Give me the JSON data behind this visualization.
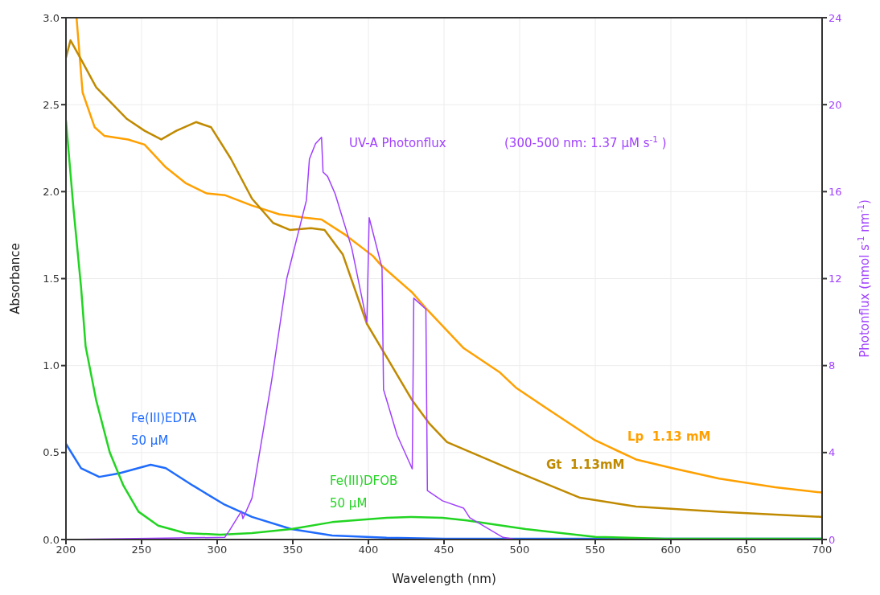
{
  "chart_data": {
    "type": "line",
    "xlabel": "Wavelength (nm)",
    "ylabel": "Absorbance",
    "y2label": "Photonflux  (nmol s$^{-1}$ nm$^{-1}$)",
    "annotations": [
      "(300-500 nm: 1.37 µM s$^{-1}$ )"
    ],
    "xlim": [
      200,
      700
    ],
    "xticks": [
      200,
      250,
      300,
      350,
      400,
      450,
      500,
      550,
      600,
      650,
      700
    ],
    "ylim": [
      0,
      3
    ],
    "yticks": [
      {
        "value": 0,
        "label": "0.0"
      },
      {
        "value": 0.5,
        "label": "0.5"
      },
      {
        "value": 1,
        "label": "1.0"
      },
      {
        "value": 1.5,
        "label": "1.5"
      },
      {
        "value": 2,
        "label": "2.0"
      },
      {
        "value": 2.5,
        "label": "2.5"
      },
      {
        "value": 3,
        "label": "3.0"
      }
    ],
    "y2lim": [
      0,
      24
    ],
    "y2ticks": [
      0,
      4,
      8,
      12,
      16,
      20,
      24
    ],
    "grid": true,
    "legend": false,
    "marker": "none",
    "line_style": "solid",
    "series": [
      {
        "name": "Lp  1.13 mM",
        "color": "#ffa000",
        "x": [
          207,
          211,
          219,
          225.5,
          241,
          252,
          266,
          279,
          293,
          305,
          323,
          341,
          358,
          369,
          385,
          403,
          408,
          429,
          438,
          463,
          487,
          498,
          522,
          550,
          577,
          601,
          632,
          669,
          700
        ],
        "values": [
          3.0,
          2.57,
          2.37,
          2.32,
          2.3,
          2.27,
          2.14,
          2.05,
          1.99,
          1.98,
          1.92,
          1.87,
          1.85,
          1.84,
          1.75,
          1.63,
          1.58,
          1.42,
          1.33,
          1.1,
          0.96,
          0.87,
          0.73,
          0.57,
          0.46,
          0.41,
          0.35,
          0.3,
          0.27
        ]
      },
      {
        "name": "Gt  1.13mM",
        "color": "#c08a00",
        "x": [
          200,
          203,
          210,
          220,
          240,
          252,
          263,
          273,
          286,
          296,
          309,
          323,
          337,
          348,
          362,
          371,
          383,
          399,
          412,
          429,
          440,
          452,
          495,
          540,
          577,
          632,
          700
        ],
        "values": [
          2.77,
          2.87,
          2.76,
          2.6,
          2.42,
          2.35,
          2.3,
          2.35,
          2.4,
          2.37,
          2.19,
          1.96,
          1.82,
          1.78,
          1.79,
          1.78,
          1.64,
          1.24,
          1.05,
          0.8,
          0.67,
          0.56,
          0.4,
          0.24,
          0.19,
          0.16,
          0.13
        ]
      },
      {
        "name": "Fe(III)EDTA\n50 µM",
        "color": "#1f6bff",
        "x": [
          200,
          210,
          222,
          235,
          256,
          266,
          284,
          305,
          323,
          349,
          376,
          412,
          450,
          700
        ],
        "values": [
          0.55,
          0.41,
          0.36,
          0.38,
          0.43,
          0.41,
          0.31,
          0.2,
          0.13,
          0.06,
          0.023,
          0.01,
          0.005,
          0.005
        ]
      },
      {
        "name": "Fe(III)DFOB\n50 µM",
        "color": "#22d422",
        "x": [
          200,
          205,
          210,
          213,
          220,
          229,
          238,
          248,
          261,
          279,
          302,
          323,
          349,
          376,
          412,
          429,
          449,
          465,
          504,
          550,
          596,
          700
        ],
        "values": [
          2.41,
          1.9,
          1.45,
          1.11,
          0.8,
          0.5,
          0.31,
          0.16,
          0.08,
          0.037,
          0.028,
          0.037,
          0.06,
          0.1,
          0.125,
          0.13,
          0.125,
          0.11,
          0.06,
          0.015,
          0.005,
          0.005
        ]
      },
      {
        "name": "UV-A Photonflux",
        "color": "#a040ff",
        "axis": "y2",
        "x": [
          200,
          305,
          308,
          316,
          317,
          323,
          336,
          346,
          359,
          361,
          365,
          369,
          370,
          373,
          378,
          389,
          399,
          400.5,
          409,
          410,
          419,
          429,
          430,
          438,
          439,
          449,
          463,
          467,
          489,
          498,
          700
        ],
        "values": [
          0,
          0.1,
          0.4,
          1.3,
          0.96,
          1.9,
          7.3,
          12.0,
          15.6,
          17.5,
          18.2,
          18.5,
          16.9,
          16.7,
          15.9,
          13.4,
          10.0,
          14.8,
          12.5,
          6.9,
          4.8,
          3.25,
          11.1,
          10.6,
          2.25,
          1.78,
          1.44,
          1.0,
          0.1,
          0,
          0
        ]
      }
    ]
  }
}
